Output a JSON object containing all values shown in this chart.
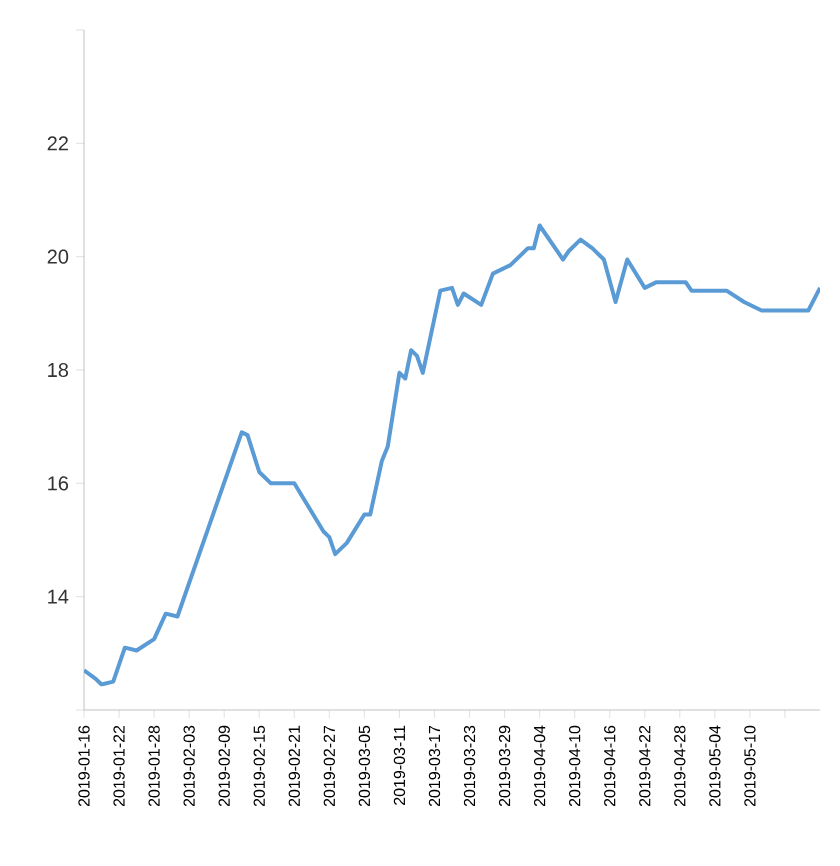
{
  "chart_data": {
    "type": "line",
    "color": "#5b9bd5",
    "marker": "none",
    "x": [
      "2019-01-16",
      "2019-01-18",
      "2019-01-19",
      "2019-01-21",
      "2019-01-23",
      "2019-01-25",
      "2019-01-28",
      "2019-01-30",
      "2019-02-01",
      "2019-02-12",
      "2019-02-13",
      "2019-02-15",
      "2019-02-17",
      "2019-02-21",
      "2019-02-26",
      "2019-02-27",
      "2019-02-28",
      "2019-03-02",
      "2019-03-05",
      "2019-03-06",
      "2019-03-08",
      "2019-03-09",
      "2019-03-11",
      "2019-03-12",
      "2019-03-13",
      "2019-03-14",
      "2019-03-15",
      "2019-03-18",
      "2019-03-20",
      "2019-03-21",
      "2019-03-22",
      "2019-03-25",
      "2019-03-27",
      "2019-03-30",
      "2019-04-02",
      "2019-04-03",
      "2019-04-04",
      "2019-04-08",
      "2019-04-09",
      "2019-04-11",
      "2019-04-13",
      "2019-04-15",
      "2019-04-17",
      "2019-04-19",
      "2019-04-22",
      "2019-04-24",
      "2019-04-29",
      "2019-04-30",
      "2019-05-06",
      "2019-05-09",
      "2019-05-12",
      "2019-05-20",
      "2019-05-22"
    ],
    "values": [
      12.7,
      12.55,
      12.45,
      12.5,
      13.1,
      13.05,
      13.25,
      13.7,
      13.65,
      16.9,
      16.85,
      16.2,
      16.0,
      16.0,
      15.15,
      15.05,
      14.75,
      14.95,
      15.45,
      15.45,
      16.4,
      16.65,
      17.95,
      17.85,
      18.35,
      18.25,
      17.95,
      19.4,
      19.45,
      19.15,
      19.35,
      19.15,
      19.7,
      19.85,
      20.15,
      20.15,
      20.55,
      19.95,
      20.1,
      20.3,
      20.15,
      19.95,
      19.2,
      19.95,
      19.45,
      19.55,
      19.55,
      19.4,
      19.4,
      19.2,
      19.05,
      19.05,
      19.45
    ],
    "xlim": [
      "2019-01-16",
      "2019-05-22"
    ],
    "xticks": [
      "2019-01-16",
      "2019-01-22",
      "2019-01-28",
      "2019-02-03",
      "2019-02-09",
      "2019-02-15",
      "2019-02-21",
      "2019-02-27",
      "2019-03-05",
      "2019-03-11",
      "2019-03-17",
      "2019-03-23",
      "2019-03-29",
      "2019-04-04",
      "2019-04-10",
      "2019-04-16",
      "2019-04-22",
      "2019-04-28",
      "2019-05-04",
      "2019-05-10",
      {
        "value": "2019-05-16",
        "label": null
      }
    ],
    "ylim": [
      12,
      24
    ],
    "yticks": [
      {
        "value": 12,
        "label": null
      },
      14,
      16,
      18,
      20,
      22,
      {
        "value": 24,
        "label": null
      }
    ]
  }
}
